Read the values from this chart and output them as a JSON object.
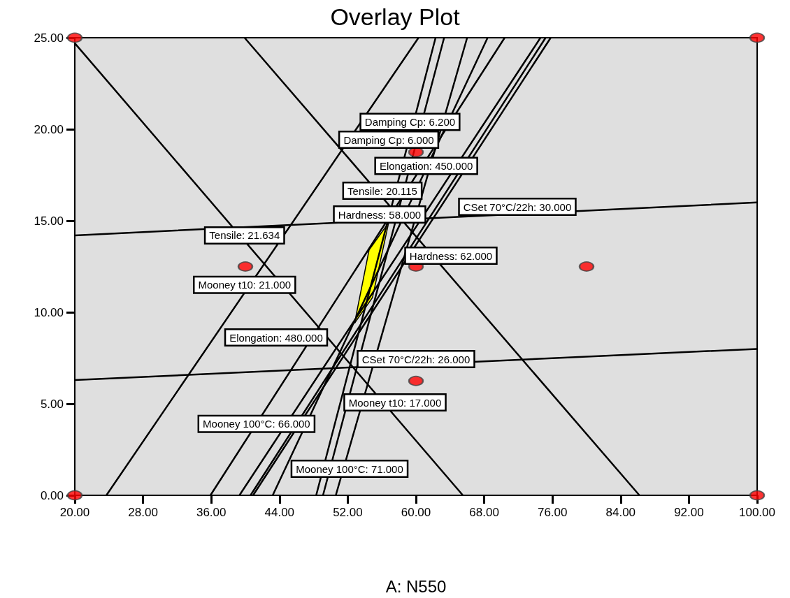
{
  "chart_data": {
    "type": "line",
    "title": "Overlay Plot",
    "xlabel": "A: N550",
    "marker": "none",
    "line_style": "solid",
    "grid": false,
    "xlim": [
      20,
      100
    ],
    "ylim": [
      0,
      25
    ],
    "xticks": [
      {
        "value": 20,
        "label": "20.00"
      },
      {
        "value": 28,
        "label": "28.00"
      },
      {
        "value": 36,
        "label": "36.00"
      },
      {
        "value": 44,
        "label": "44.00"
      },
      {
        "value": 52,
        "label": "52.00"
      },
      {
        "value": 60,
        "label": "60.00"
      },
      {
        "value": 68,
        "label": "68.00"
      },
      {
        "value": 76,
        "label": "76.00"
      },
      {
        "value": 84,
        "label": "84.00"
      },
      {
        "value": 92,
        "label": "92.00"
      },
      {
        "value": 100,
        "label": "100.00"
      }
    ],
    "yticks": [
      {
        "value": 0,
        "label": "0.00"
      },
      {
        "value": 5,
        "label": "5.00"
      },
      {
        "value": 10,
        "label": "10.00"
      },
      {
        "value": 15,
        "label": "15.00"
      },
      {
        "value": 20,
        "label": "20.00"
      },
      {
        "value": 25,
        "label": "25.00"
      }
    ],
    "series": [
      {
        "type": "area",
        "color": "#ffff00",
        "x": [
          56.8,
          54.5,
          52.8,
          54.9,
          56.8
        ],
        "values": [
          14.9,
          13.4,
          9.4,
          10.8,
          14.9
        ]
      },
      {
        "color": "#000000",
        "x": [
          20,
          65.5
        ],
        "values": [
          24.7,
          0
        ]
      },
      {
        "color": "#000000",
        "x": [
          39.9,
          86.2
        ],
        "values": [
          25,
          0
        ]
      },
      {
        "color": "#000000",
        "x": [
          20,
          100
        ],
        "values": [
          14.2,
          16.0
        ]
      },
      {
        "color": "#000000",
        "x": [
          20,
          100
        ],
        "values": [
          6.3,
          8.0
        ]
      },
      {
        "color": "#000000",
        "x": [
          23.7,
          60.3
        ],
        "values": [
          0,
          25
        ]
      },
      {
        "color": "#000000",
        "x": [
          35.9,
          70.4
        ],
        "values": [
          0,
          25
        ]
      },
      {
        "color": "#000000",
        "x": [
          39.3,
          74.6
        ],
        "values": [
          0,
          25
        ]
      },
      {
        "color": "#000000",
        "x": [
          40.6,
          75.2
        ],
        "values": [
          0,
          25
        ]
      },
      {
        "color": "#000000",
        "x": [
          40.9,
          75.8
        ],
        "values": [
          0,
          25
        ]
      },
      {
        "color": "#000000",
        "x": [
          43.2,
          68.4
        ],
        "values": [
          0,
          25
        ]
      },
      {
        "color": "#000000",
        "x": [
          48.3,
          62.3
        ],
        "values": [
          0,
          25
        ]
      },
      {
        "color": "#000000",
        "x": [
          49.1,
          63.3
        ],
        "values": [
          0,
          25
        ]
      },
      {
        "color": "#000000",
        "x": [
          50.6,
          66.0
        ],
        "values": [
          0,
          25
        ]
      },
      {
        "type": "scatter",
        "marker": "circle",
        "color": "#ff0000",
        "x": [
          20,
          20,
          100,
          100,
          40,
          60,
          80,
          60,
          60
        ],
        "values": [
          0,
          25,
          0,
          25,
          12.5,
          12.5,
          12.5,
          18.75,
          6.25
        ]
      }
    ],
    "annotations": [
      {
        "text": "Damping Cp: 6.200",
        "x": 59.3,
        "y": 20.4
      },
      "Damping Cp: 6.000",
      {
        "text": "Elongation: 450.000",
        "x": 61.2,
        "y": 18.0
      },
      "Tensile: 20.115",
      "Hardness: 58.000",
      "CSet 70°C/22h: 30.000",
      {
        "text": "Tensile: 21.634",
        "x": 39.9,
        "y": 14.2
      },
      "Hardness: 62.000",
      {
        "text": "Mooney t10: 21.000",
        "x": 39.9,
        "y": 11.5
      },
      "Elongation: 480.000",
      "CSet 70°C/22h: 26.000",
      "Mooney t10: 17.000",
      {
        "text": "Mooney 100°C: 66.000",
        "x": 41.3,
        "y": 3.9
      },
      "Mooney 100°C: 71.000"
    ]
  }
}
